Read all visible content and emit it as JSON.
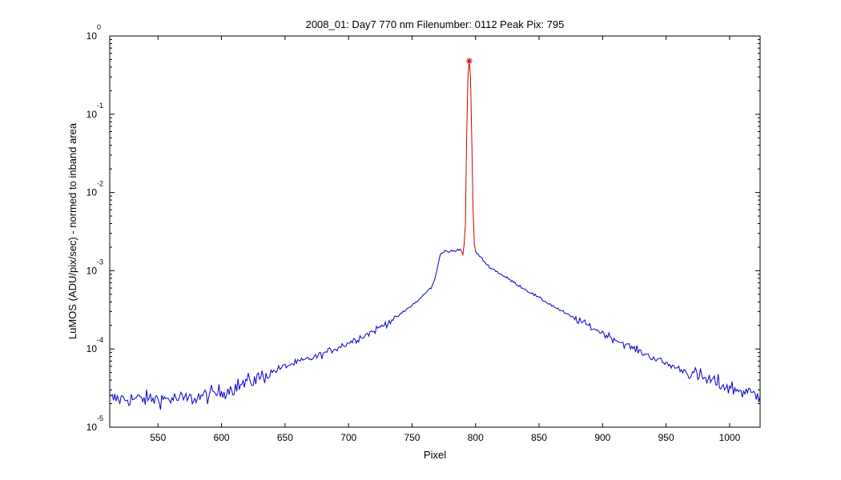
{
  "chart_data": {
    "type": "line",
    "title": "2008_01: Day7  770 nm  Filenumber: 0112 Peak Pix: 795",
    "xlabel": "Pixel",
    "ylabel": "LuMOS (ADU/pix/sec) - normed to inband area",
    "xlim": [
      512,
      1024
    ],
    "ylim": [
      1e-05,
      1
    ],
    "yscale": "log",
    "xticks": [
      550,
      600,
      650,
      700,
      750,
      800,
      850,
      900,
      950,
      1000
    ],
    "xtick_labels": [
      "550",
      "600",
      "650",
      "700",
      "750",
      "800",
      "850",
      "900",
      "950",
      "1000"
    ],
    "yticks": [
      1e-05,
      0.0001,
      0.001,
      0.01,
      0.1,
      1
    ],
    "ytick_base": "10",
    "ytick_exponents": [
      "-5",
      "-4",
      "-3",
      "-2",
      "-1",
      "0"
    ],
    "grid": false,
    "series": [
      {
        "color": "#0000cc",
        "role": "out-of-band",
        "x": [
          512,
          530,
          550,
          575,
          600,
          625,
          650,
          675,
          700,
          720,
          740,
          755,
          765,
          768,
          770,
          772,
          775,
          780,
          785,
          788
        ],
        "y": [
          2.3e-05,
          2.3e-05,
          2.3e-05,
          2.3e-05,
          2.8e-05,
          4e-05,
          6e-05,
          8e-05,
          0.00012,
          0.00017,
          0.00027,
          0.00042,
          0.00061,
          0.00077,
          0.0011,
          0.0016,
          0.0018,
          0.00175,
          0.0018,
          0.0019
        ]
      },
      {
        "color": "#cc0000",
        "role": "in-band",
        "x": [
          788,
          790,
          791,
          792,
          793,
          794,
          795,
          796,
          797,
          798,
          799,
          800
        ],
        "y": [
          0.0019,
          0.0016,
          0.0022,
          0.004,
          0.05,
          0.3,
          0.48,
          0.3,
          0.05,
          0.006,
          0.0022,
          0.00175
        ]
      },
      {
        "color": "#0000cc",
        "role": "out-of-band",
        "x": [
          800,
          810,
          825,
          850,
          875,
          900,
          925,
          950,
          975,
          1000,
          1024
        ],
        "y": [
          0.00175,
          0.00115,
          0.0008,
          0.00045,
          0.00026,
          0.00016,
          0.0001,
          6.5e-05,
          4.5e-05,
          3.2e-05,
          2.5e-05
        ]
      }
    ],
    "peak_marker": {
      "x": 795,
      "y": 0.48,
      "symbol": "*",
      "color": "#cc0000"
    }
  }
}
